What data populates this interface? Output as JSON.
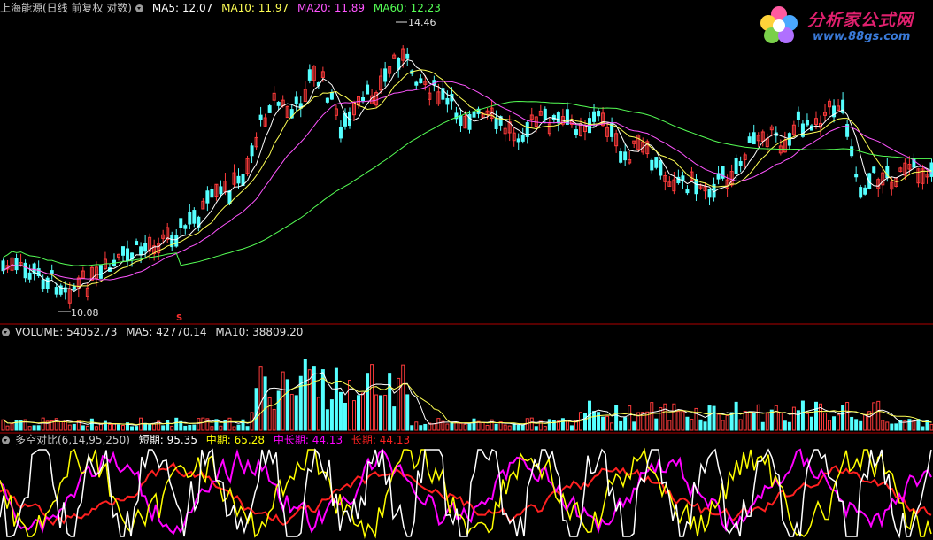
{
  "main_panel": {
    "title": "上海能源(日线 前复权 对数)",
    "indicators": [
      {
        "label": "MA5:",
        "value": "12.07",
        "color": "#ffffff"
      },
      {
        "label": "MA10:",
        "value": "11.97",
        "color": "#ffff55"
      },
      {
        "label": "MA20:",
        "value": "11.89",
        "color": "#ff55ff"
      },
      {
        "label": "MA60:",
        "value": "12.23",
        "color": "#55ff55"
      }
    ],
    "high_label": "14.46",
    "low_label": "10.08",
    "marker": "S"
  },
  "volume_panel": {
    "title": "VOLUME:",
    "value": "54052.73",
    "ma5_label": "MA5:",
    "ma5_value": "42770.14",
    "ma10_label": "MA10:",
    "ma10_value": "38809.20"
  },
  "osc_panel": {
    "title": "多空对比(6,14,95,250)",
    "items": [
      {
        "label": "短期:",
        "value": "95.35",
        "color": "#ffffff"
      },
      {
        "label": "中期:",
        "value": "65.28",
        "color": "#ffff00"
      },
      {
        "label": "中长期:",
        "value": "44.13",
        "color": "#ff00ff"
      },
      {
        "label": "长期:",
        "value": "44.13",
        "color": "#ff2020"
      }
    ]
  },
  "watermark": {
    "title": "分析家公式网",
    "url": "www.88gs.com"
  },
  "colors": {
    "up": "#ff3b3b",
    "down": "#55ffff",
    "grid": "#8b0000",
    "ma5": "#ffffff",
    "ma10": "#ffff55",
    "ma20": "#ff55ff",
    "ma60": "#55ff55"
  }
}
